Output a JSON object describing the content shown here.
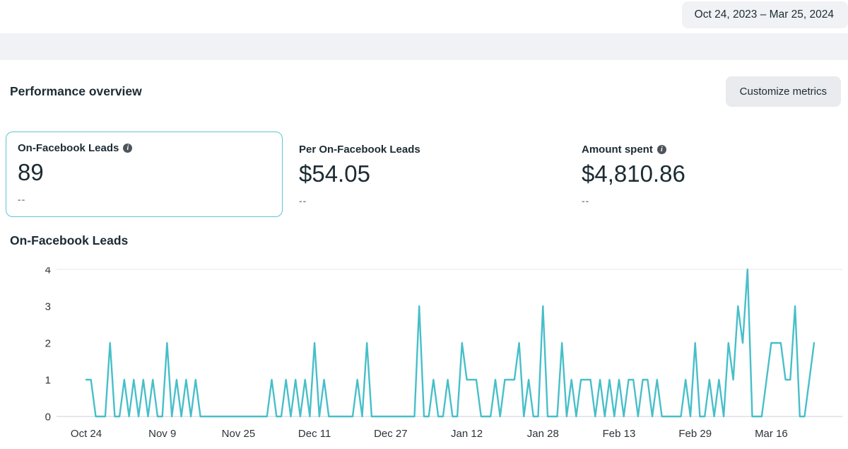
{
  "header": {
    "date_range": "Oct 24, 2023 – Mar 25, 2024"
  },
  "performance": {
    "title": "Performance overview",
    "customize_button": "Customize metrics"
  },
  "metrics": [
    {
      "label": "On-Facebook Leads",
      "has_info_icon": true,
      "value": "89",
      "secondary": "--",
      "selected": true
    },
    {
      "label": "Per On-Facebook Leads",
      "has_info_icon": false,
      "value": "$54.05",
      "secondary": "--",
      "selected": false
    },
    {
      "label": "Amount spent",
      "has_info_icon": true,
      "value": "$4,810.86",
      "secondary": "--",
      "selected": false
    }
  ],
  "chart_data": {
    "type": "line",
    "title": "On-Facebook Leads",
    "series_name": "On-Facebook Leads",
    "start_date": "Oct 24, 2023",
    "end_date": "Mar 25, 2024",
    "x_tick_labels": [
      "Oct 24",
      "Nov 9",
      "Nov 25",
      "Dec 11",
      "Dec 27",
      "Jan 12",
      "Jan 28",
      "Feb 13",
      "Feb 29",
      "Mar 16"
    ],
    "x_tick_day_index": [
      0,
      16,
      32,
      48,
      64,
      80,
      96,
      112,
      128,
      144
    ],
    "y_ticks": [
      0,
      1,
      2,
      3,
      4
    ],
    "ylim": [
      0,
      4
    ],
    "grid": "top-and-baseline-only",
    "legend": "none",
    "line_color": "#47bfc9",
    "total": 89,
    "values": [
      1,
      1,
      0,
      0,
      0,
      2,
      0,
      0,
      1,
      0,
      1,
      0,
      1,
      0,
      1,
      0,
      0,
      2,
      0,
      1,
      0,
      1,
      0,
      1,
      0,
      0,
      0,
      0,
      0,
      0,
      0,
      0,
      0,
      0,
      0,
      0,
      0,
      0,
      0,
      1,
      0,
      0,
      1,
      0,
      1,
      0,
      1,
      0,
      2,
      0,
      1,
      0,
      0,
      0,
      0,
      0,
      0,
      1,
      0,
      2,
      0,
      0,
      0,
      0,
      0,
      0,
      0,
      0,
      0,
      0,
      3,
      0,
      0,
      1,
      0,
      0,
      1,
      0,
      0,
      2,
      1,
      1,
      1,
      0,
      0,
      0,
      1,
      0,
      1,
      1,
      1,
      2,
      0,
      1,
      0,
      0,
      3,
      0,
      0,
      0,
      2,
      0,
      1,
      0,
      1,
      1,
      1,
      0,
      1,
      0,
      1,
      0,
      1,
      0,
      1,
      1,
      0,
      1,
      1,
      0,
      1,
      0,
      0,
      0,
      0,
      0,
      1,
      0,
      2,
      0,
      0,
      1,
      0,
      1,
      0,
      2,
      1,
      3,
      2,
      4,
      0,
      0,
      0,
      1,
      2,
      2,
      2,
      1,
      1,
      3,
      0,
      0,
      1,
      2
    ]
  },
  "colors": {
    "accent": "#47bfc9",
    "card_border": "#5cc6d2",
    "chip_bg": "#f0f2f5",
    "button_bg": "#e9ebee",
    "text_primary": "#1c2b33",
    "text_secondary": "#90949c",
    "grid": "#e6e7ea",
    "axis": "#ccd0d5"
  }
}
